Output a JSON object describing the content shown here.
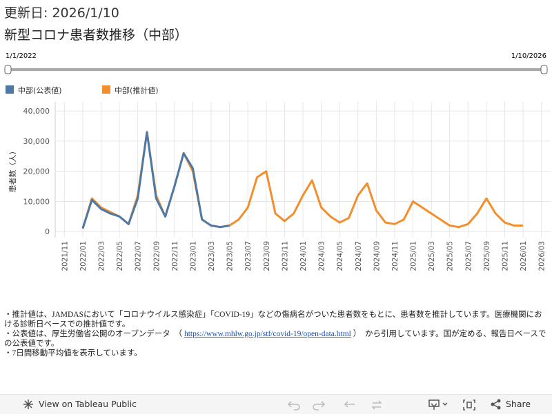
{
  "header": {
    "updated": "更新日: 2026/1/10",
    "title": "新型コロナ患者数推移（中部）"
  },
  "slider": {
    "start": "1/1/2022",
    "end": "1/10/2026"
  },
  "chart_data": {
    "type": "line",
    "y_label": "患者数（人）",
    "x": [
      "2022/01",
      "2022/02",
      "2022/03",
      "2022/04",
      "2022/05",
      "2022/06",
      "2022/07",
      "2022/08",
      "2022/09",
      "2022/10",
      "2022/11",
      "2022/12",
      "2023/01",
      "2023/02",
      "2023/03",
      "2023/04",
      "2023/05",
      "2023/06",
      "2023/07",
      "2023/08",
      "2023/09",
      "2023/10",
      "2023/11",
      "2023/12",
      "2024/01",
      "2024/02",
      "2024/03",
      "2024/04",
      "2024/05",
      "2024/06",
      "2024/07",
      "2024/08",
      "2024/09",
      "2024/10",
      "2024/11",
      "2024/12",
      "2025/01",
      "2025/02",
      "2025/03",
      "2025/04",
      "2025/05",
      "2025/06",
      "2025/07",
      "2025/08",
      "2025/09",
      "2025/10",
      "2025/11",
      "2025/12",
      "2026/01"
    ],
    "series": [
      {
        "name": "中部(公表値)",
        "color": "#4e79a7",
        "values": [
          1000,
          10500,
          7500,
          6000,
          5000,
          2500,
          11000,
          33000,
          11000,
          5000,
          15000,
          26000,
          21000,
          4000,
          2000,
          1500,
          2000,
          null,
          null,
          null,
          null,
          null,
          null,
          null,
          null,
          null,
          null,
          null,
          null,
          null,
          null,
          null,
          null,
          null,
          null,
          null,
          null,
          null,
          null,
          null,
          null,
          null,
          null,
          null,
          null,
          null,
          null,
          null,
          null
        ]
      },
      {
        "name": "中部(推計値)",
        "color": "#f28e2b",
        "values": [
          1000,
          11000,
          8000,
          6500,
          5000,
          2500,
          12000,
          33000,
          12000,
          5000,
          15000,
          26000,
          20000,
          4000,
          2000,
          1500,
          2000,
          4000,
          8000,
          18000,
          20000,
          6000,
          3500,
          6000,
          12000,
          17000,
          8000,
          5000,
          3000,
          4500,
          12000,
          16000,
          7000,
          3000,
          2500,
          4000,
          10000,
          8000,
          6000,
          4000,
          2000,
          1500,
          2500,
          6000,
          11000,
          6000,
          3000,
          2000,
          2000
        ]
      }
    ],
    "xlim": [
      "2021/10",
      "2026/04"
    ],
    "xticks": [
      "2021/11",
      "2022/01",
      "2022/03",
      "2022/05",
      "2022/07",
      "2022/09",
      "2022/11",
      "2023/01",
      "2023/03",
      "2023/05",
      "2023/07",
      "2023/09",
      "2023/11",
      "2024/01",
      "2024/03",
      "2024/05",
      "2024/07",
      "2024/09",
      "2024/11",
      "2025/01",
      "2025/03",
      "2025/05",
      "2025/07",
      "2025/09",
      "2025/11",
      "2026/01",
      "2026/03"
    ],
    "ylim": [
      -2000,
      43000
    ],
    "yticks": [
      0,
      {
        "value": 10000,
        "label": "10,000"
      },
      {
        "value": 20000,
        "label": "20,000"
      },
      {
        "value": 30000,
        "label": "30,000"
      },
      {
        "value": 40000,
        "label": "40,000"
      }
    ],
    "grid": true
  },
  "notes": {
    "line1": "・推計値は、JAMDASにおいて「コロナウイルス感染症」「COVID-19」などの傷病名がついた患者数をもとに、患者数を推計しています。医療機関における診断日ベースでの推計値です。",
    "line2_before": "・公表値は、厚生労働省公開のオープンデータ　（ ",
    "line2_link": "https://www.mhlw.go.jp/stf/covid-19/open-data.html",
    "line2_after": " ）　から引用しています。国が定める、報告日ベースでの公表値です。",
    "line3": "・7日間移動平均値を表示しています。"
  },
  "toolbar": {
    "view": "View on Tableau Public",
    "share": "Share"
  }
}
